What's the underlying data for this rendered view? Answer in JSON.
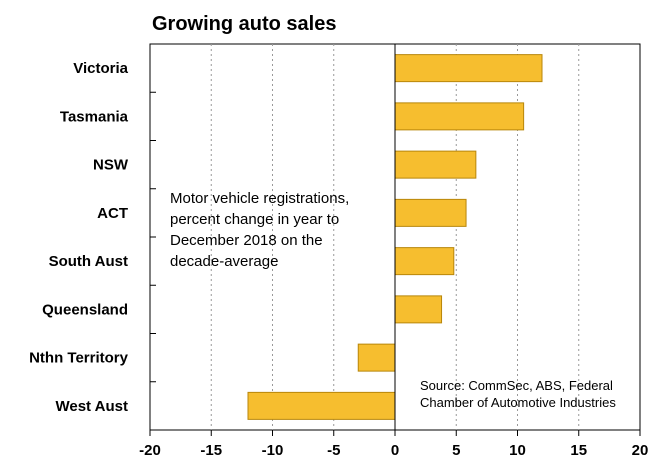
{
  "chart_data": {
    "type": "bar",
    "orientation": "horizontal",
    "title": "Growing auto sales",
    "categories": [
      "Victoria",
      "Tasmania",
      "NSW",
      "ACT",
      "South Aust",
      "Queensland",
      "Nthn Territory",
      "West Aust"
    ],
    "values": [
      12.0,
      10.5,
      6.6,
      5.8,
      4.8,
      3.8,
      -3.0,
      -12.0
    ],
    "xlim": [
      -20,
      20
    ],
    "xticks": [
      "-20",
      "-15",
      "-10",
      "-5",
      "0",
      "5",
      "10",
      "15",
      "20"
    ],
    "grid": "vertical dotted",
    "bar_color": "#F6BE2F",
    "bar_edge_color": "#B8860B",
    "annotation": [
      "Motor vehicle registrations,",
      "percent change in year to",
      "December 2018 on the",
      "decade-average"
    ],
    "source": [
      "Source: CommSec, ABS, Federal",
      "Chamber of Automotive Industries"
    ]
  }
}
